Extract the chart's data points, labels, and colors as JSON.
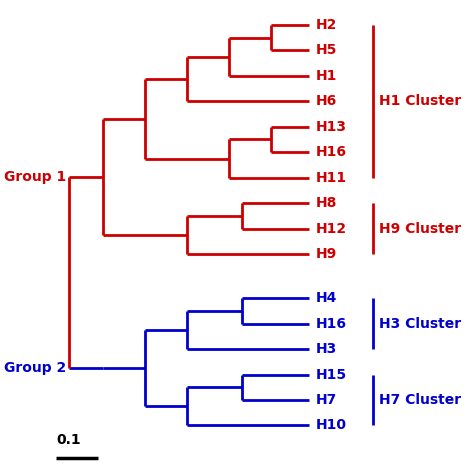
{
  "red_color": "#CC0000",
  "blue_color": "#0000CC",
  "black_color": "#000000",
  "lw": 2.0,
  "group1_label": "Group 1",
  "group2_label": "Group 2",
  "h1_cluster_label": "H1 Cluster",
  "h9_cluster_label": "H9 Cluster",
  "h3_cluster_label": "H3 Cluster",
  "h7_cluster_label": "H7 Cluster",
  "scale_label": "0.1",
  "label_fontsize": 10,
  "cluster_fontsize": 10,
  "group_fontsize": 10
}
